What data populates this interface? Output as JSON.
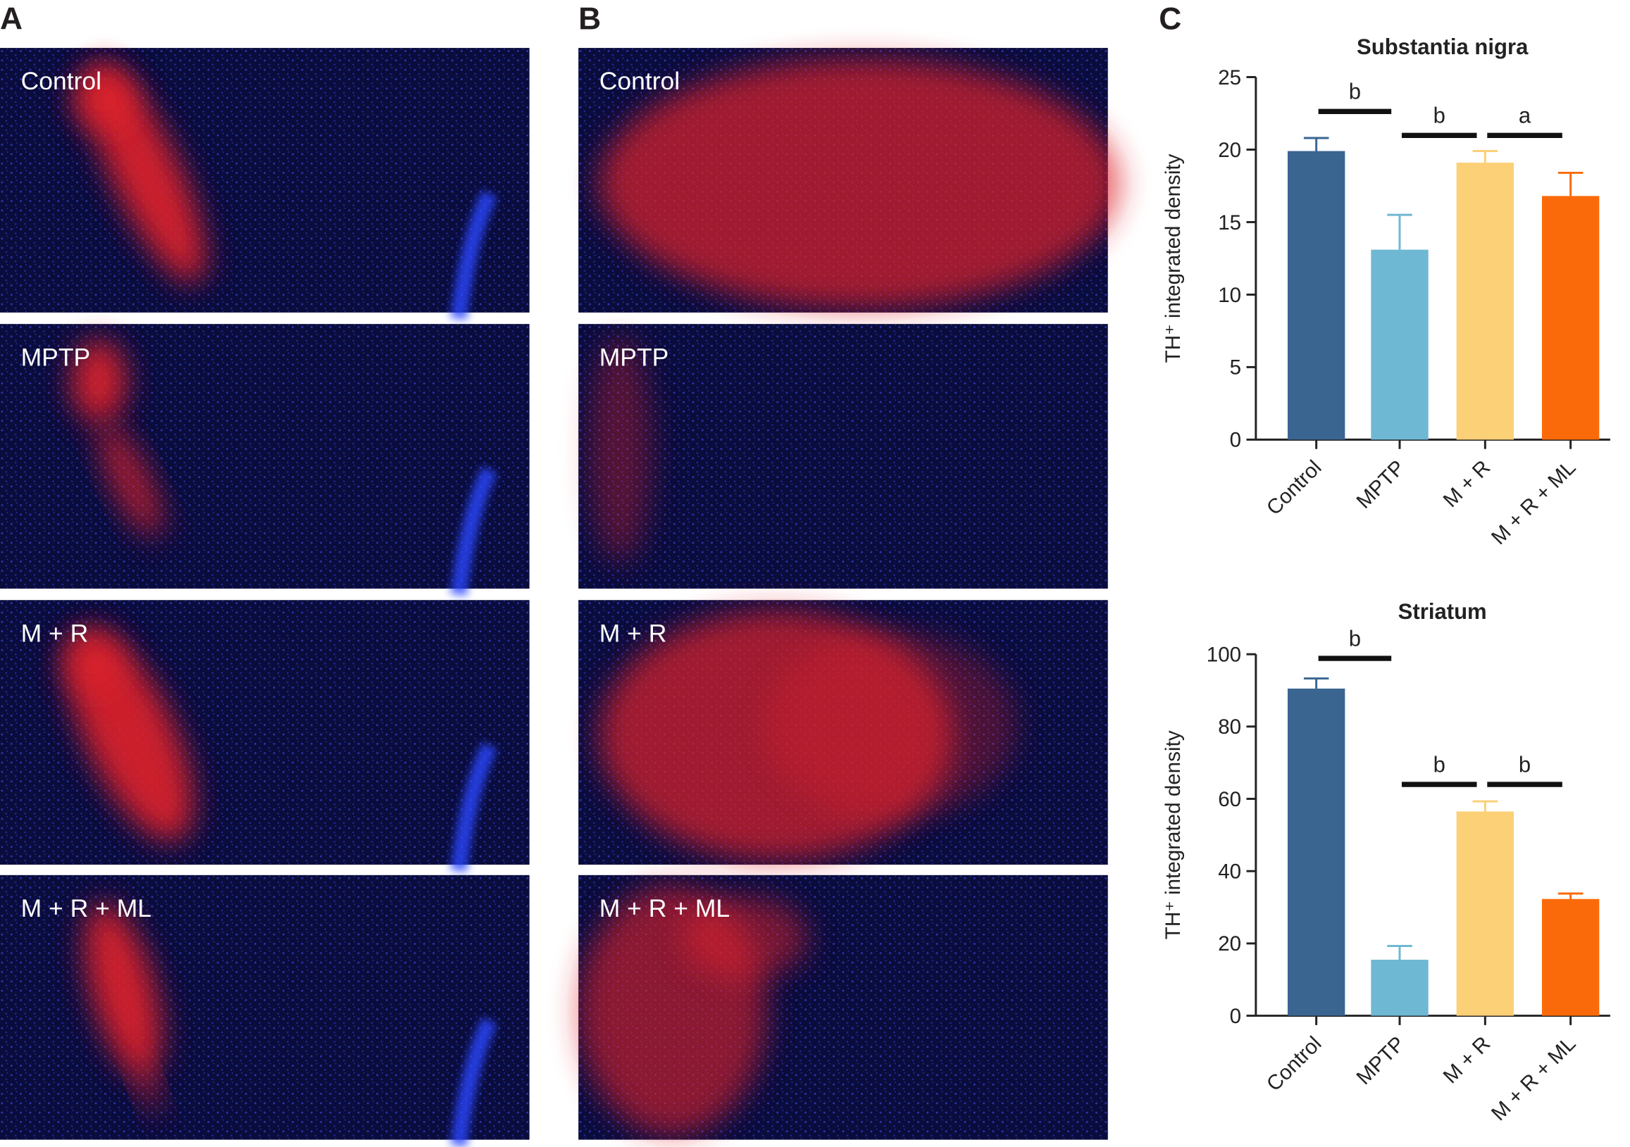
{
  "panels": [
    {
      "letter": "A",
      "images": [
        "Control",
        "MPTP",
        "M + R",
        "M + R + ML"
      ]
    },
    {
      "letter": "B",
      "images": [
        "Control",
        "MPTP",
        "M + R",
        "M + R + ML"
      ]
    }
  ],
  "panel_c_letter": "C",
  "chart_data": [
    {
      "type": "bar",
      "title": "Substantia nigra",
      "y_label": "TH⁺ integrated density",
      "categories": [
        "Control",
        "MPTP",
        "M + R",
        "M + R + ML"
      ],
      "values": [
        19.9,
        13.1,
        19.1,
        16.8
      ],
      "errors": [
        0.9,
        2.4,
        0.8,
        1.6
      ],
      "colors": [
        "#3a6591",
        "#6fb8d4",
        "#fcd077",
        "#fb6a0a"
      ],
      "ylim": [
        0,
        25
      ],
      "yticks": [
        0,
        5,
        10,
        15,
        20,
        25
      ],
      "annotations": [
        "b",
        "b",
        "a"
      ]
    },
    {
      "type": "bar",
      "title": "Striatum",
      "y_label": "TH⁺ integrated density",
      "categories": [
        "Control",
        "MPTP",
        "M + R",
        "M + R + ML"
      ],
      "values": [
        90.5,
        15.5,
        56.5,
        32.3
      ],
      "errors": [
        2.8,
        3.8,
        2.8,
        1.5
      ],
      "colors": [
        "#3a6591",
        "#6fb8d4",
        "#fcd077",
        "#fb6a0a"
      ],
      "ylim": [
        0,
        100
      ],
      "yticks": [
        0,
        20,
        40,
        60,
        80,
        100
      ],
      "annotations": [
        "b",
        "b",
        "b"
      ]
    }
  ]
}
